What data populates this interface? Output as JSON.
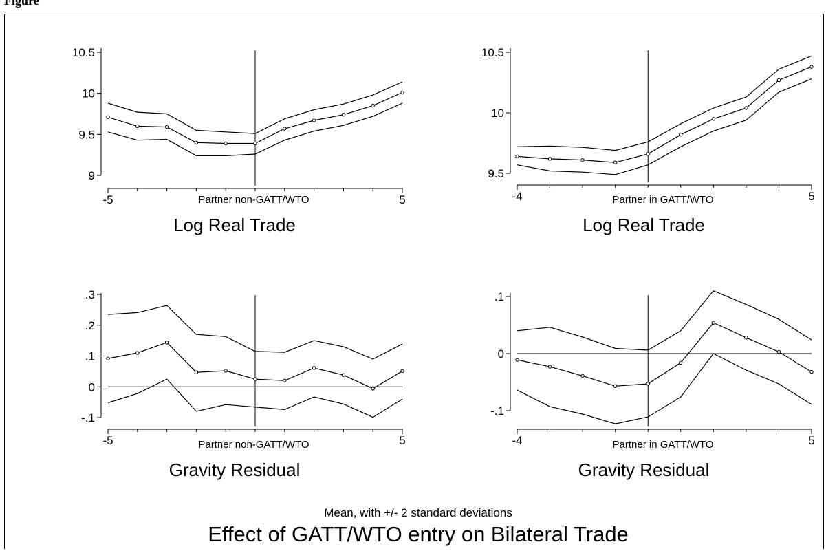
{
  "figure": {
    "caption": "Figure",
    "subtitle": "Mean, with +/- 2 standard deviations",
    "title": "Effect of GATT/WTO entry on Bilateral Trade"
  },
  "chart_data": [
    {
      "type": "line",
      "title": "Log Real Trade",
      "xlabel": "Partner non-GATT/WTO",
      "xlim": [
        -5,
        5
      ],
      "ylim": [
        8.92,
        10.62
      ],
      "yticks": [
        9,
        9.5,
        10,
        10.5
      ],
      "ytick_labels": [
        "9",
        "9.5",
        "10",
        "10.5"
      ],
      "xtick_labels": [
        "-5",
        "5"
      ],
      "xtick_values": [
        -5,
        5
      ],
      "xminor": [
        -4,
        -3,
        -2,
        -1,
        0,
        1,
        2,
        3,
        4
      ],
      "vline": 0,
      "hline": null,
      "x": [
        -5,
        -4,
        -3,
        -2,
        -1,
        0,
        1,
        2,
        3,
        4,
        5
      ],
      "series": [
        {
          "role": "upper",
          "values": [
            9.88,
            9.77,
            9.75,
            9.55,
            9.53,
            9.51,
            9.69,
            9.8,
            9.87,
            9.98,
            10.14
          ]
        },
        {
          "role": "mean",
          "values": [
            9.71,
            9.6,
            9.59,
            9.4,
            9.39,
            9.39,
            9.57,
            9.67,
            9.74,
            9.85,
            10.01
          ]
        },
        {
          "role": "lower",
          "values": [
            9.53,
            9.43,
            9.44,
            9.24,
            9.24,
            9.26,
            9.43,
            9.54,
            9.61,
            9.72,
            9.88
          ]
        }
      ],
      "grid": false
    },
    {
      "type": "line",
      "title": "Log Real Trade",
      "xlabel": "Partner in GATT/WTO",
      "xlim": [
        -4,
        5
      ],
      "ylim": [
        9.47,
        10.62
      ],
      "yticks": [
        9.5,
        10,
        10.5
      ],
      "ytick_labels": [
        "9.5",
        "10",
        "10.5"
      ],
      "xtick_labels": [
        "-4",
        "5"
      ],
      "xtick_values": [
        -4,
        5
      ],
      "xminor": [
        -3,
        -2,
        -1,
        0,
        1,
        2,
        3,
        4
      ],
      "vline": 0,
      "hline": null,
      "x": [
        -4,
        -3,
        -2,
        -1,
        0,
        1,
        2,
        3,
        4,
        5
      ],
      "series": [
        {
          "role": "upper",
          "values": [
            9.72,
            9.725,
            9.715,
            9.69,
            9.76,
            9.91,
            10.04,
            10.13,
            10.36,
            10.47
          ]
        },
        {
          "role": "mean",
          "values": [
            9.64,
            9.62,
            9.61,
            9.59,
            9.66,
            9.82,
            9.95,
            10.04,
            10.27,
            10.38
          ]
        },
        {
          "role": "lower",
          "values": [
            9.57,
            9.52,
            9.51,
            9.49,
            9.57,
            9.72,
            9.85,
            9.94,
            10.17,
            10.28
          ]
        }
      ],
      "grid": false
    },
    {
      "type": "line",
      "title": "Gravity Residual",
      "xlabel": "Partner non-GATT/WTO",
      "xlim": [
        -5,
        5
      ],
      "ylim": [
        -0.115,
        0.315
      ],
      "yticks": [
        -0.1,
        0,
        0.1,
        0.2,
        0.3
      ],
      "ytick_labels": [
        "-.1",
        "0",
        ".1",
        ".2",
        ".3"
      ],
      "xtick_labels": [
        "-5",
        "5"
      ],
      "xtick_values": [
        -5,
        5
      ],
      "xminor": [
        -4,
        -3,
        -2,
        -1,
        0,
        1,
        2,
        3,
        4
      ],
      "vline": 0,
      "hline": 0,
      "x": [
        -5,
        -4,
        -3,
        -2,
        -1,
        0,
        1,
        2,
        3,
        4,
        5
      ],
      "series": [
        {
          "role": "upper",
          "values": [
            0.235,
            0.241,
            0.264,
            0.17,
            0.163,
            0.115,
            0.112,
            0.15,
            0.13,
            0.09,
            0.139
          ]
        },
        {
          "role": "mean",
          "values": [
            0.092,
            0.11,
            0.144,
            0.047,
            0.052,
            0.025,
            0.02,
            0.061,
            0.038,
            -0.006,
            0.051
          ]
        },
        {
          "role": "lower",
          "values": [
            -0.052,
            -0.022,
            0.025,
            -0.08,
            -0.058,
            -0.066,
            -0.074,
            -0.033,
            -0.056,
            -0.099,
            -0.04
          ]
        }
      ],
      "grid": false
    },
    {
      "type": "line",
      "title": "Gravity Residual",
      "xlabel": "Partner in GATT/WTO",
      "xlim": [
        -4,
        5
      ],
      "ylim": [
        -0.138,
        0.12
      ],
      "yticks": [
        -0.1,
        0,
        0.1
      ],
      "ytick_labels": [
        "-.1",
        "0",
        ".1"
      ],
      "xtick_labels": [
        "-4",
        "5"
      ],
      "xtick_values": [
        -4,
        5
      ],
      "xminor": [
        -3,
        -2,
        -1,
        0,
        1,
        2,
        3,
        4
      ],
      "vline": 0,
      "hline": 0,
      "x": [
        -4,
        -3,
        -2,
        -1,
        0,
        1,
        2,
        3,
        4,
        5
      ],
      "series": [
        {
          "role": "upper",
          "values": [
            0.04,
            0.046,
            0.029,
            0.009,
            0.006,
            0.04,
            0.11,
            0.086,
            0.06,
            0.024
          ]
        },
        {
          "role": "mean",
          "values": [
            -0.011,
            -0.023,
            -0.039,
            -0.057,
            -0.053,
            -0.016,
            0.054,
            0.028,
            0.003,
            -0.032
          ]
        },
        {
          "role": "lower",
          "values": [
            -0.064,
            -0.093,
            -0.106,
            -0.123,
            -0.111,
            -0.076,
            0.0,
            -0.029,
            -0.053,
            -0.089
          ]
        }
      ],
      "grid": false
    }
  ]
}
